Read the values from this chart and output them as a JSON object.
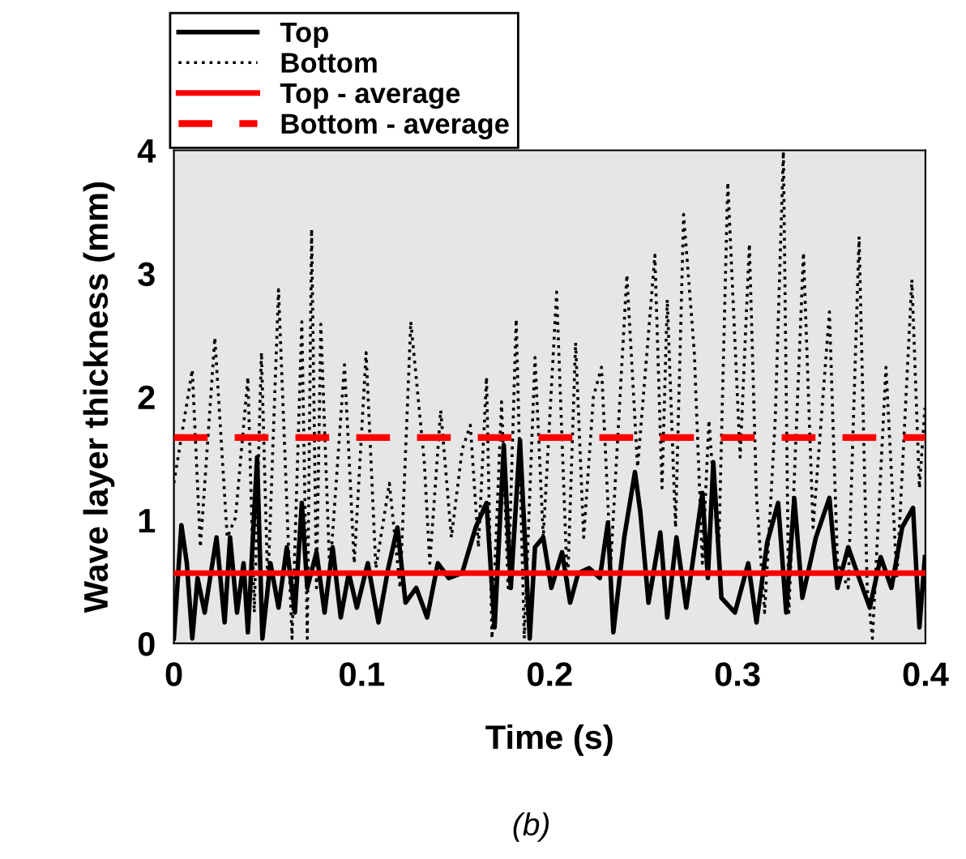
{
  "chart_data": {
    "type": "line",
    "xlabel": "Time (s)",
    "ylabel": "Wave layer thickness (mm)",
    "xlim": [
      0,
      0.4
    ],
    "xticks": [
      0,
      0.1,
      0.2,
      0.3,
      0.4
    ],
    "ylim": [
      0,
      4
    ],
    "yticks": [
      0,
      1,
      2,
      3,
      4
    ],
    "grid": false,
    "legend": "top left",
    "annotations": [
      "(b)"
    ],
    "series": [
      {
        "name": "Top",
        "color": "#000000",
        "line_style": "solid",
        "x": [
          0,
          0.004,
          0.0069,
          0.0098,
          0.0126,
          0.0164,
          0.0227,
          0.027,
          0.0299,
          0.0336,
          0.0371,
          0.0394,
          0.0443,
          0.0471,
          0.0514,
          0.0557,
          0.0601,
          0.0644,
          0.0681,
          0.071,
          0.0759,
          0.0802,
          0.0845,
          0.0888,
          0.0931,
          0.0974,
          0.1032,
          0.1089,
          0.1141,
          0.119,
          0.1233,
          0.129,
          0.1348,
          0.1405,
          0.1463,
          0.1534,
          0.1606,
          0.1664,
          0.1707,
          0.1756,
          0.1793,
          0.1842,
          0.1894,
          0.1922,
          0.1966,
          0.2009,
          0.2066,
          0.2109,
          0.2152,
          0.221,
          0.2267,
          0.231,
          0.2339,
          0.2397,
          0.2454,
          0.2483,
          0.2526,
          0.2589,
          0.2626,
          0.2675,
          0.2727,
          0.2813,
          0.2842,
          0.2871,
          0.2914,
          0.2986,
          0.3057,
          0.3101,
          0.3158,
          0.3216,
          0.3259,
          0.3302,
          0.3345,
          0.3417,
          0.3489,
          0.3532,
          0.3589,
          0.3647,
          0.3704,
          0.3762,
          0.3819,
          0.3876,
          0.3934,
          0.3968,
          0.3997
        ],
        "values": [
          0.04,
          0.96,
          0.65,
          0.04,
          0.53,
          0.25,
          0.86,
          0.17,
          0.86,
          0.25,
          0.65,
          0.09,
          1.51,
          0.04,
          0.65,
          0.29,
          0.78,
          0.25,
          1.14,
          0.45,
          0.74,
          0.25,
          0.78,
          0.21,
          0.57,
          0.29,
          0.65,
          0.17,
          0.61,
          0.94,
          0.33,
          0.45,
          0.21,
          0.65,
          0.53,
          0.57,
          0.94,
          1.14,
          0.13,
          1.61,
          0.45,
          1.65,
          0.04,
          0.78,
          0.86,
          0.45,
          0.74,
          0.33,
          0.57,
          0.61,
          0.53,
          0.98,
          0.09,
          0.86,
          1.39,
          1.06,
          0.33,
          0.9,
          0.21,
          0.86,
          0.29,
          1.22,
          0.53,
          1.47,
          0.37,
          0.25,
          0.65,
          0.17,
          0.82,
          1.14,
          0.25,
          1.18,
          0.37,
          0.86,
          1.18,
          0.45,
          0.78,
          0.53,
          0.29,
          0.7,
          0.45,
          0.94,
          1.1,
          0.13,
          0.7
        ]
      },
      {
        "name": "Bottom",
        "color": "#000000",
        "line_style": "dotted",
        "x": [
          0,
          0.0098,
          0.0141,
          0.0218,
          0.0284,
          0.0328,
          0.0394,
          0.0428,
          0.0466,
          0.05,
          0.0557,
          0.0629,
          0.0681,
          0.071,
          0.0733,
          0.0759,
          0.0782,
          0.083,
          0.0908,
          0.096,
          0.1023,
          0.1075,
          0.1147,
          0.1204,
          0.1261,
          0.1333,
          0.1362,
          0.142,
          0.1477,
          0.1534,
          0.1578,
          0.1621,
          0.1664,
          0.1693,
          0.1744,
          0.1779,
          0.1822,
          0.1865,
          0.1922,
          0.1966,
          0.2037,
          0.2095,
          0.2138,
          0.2181,
          0.2233,
          0.2276,
          0.2325,
          0.2411,
          0.2468,
          0.256,
          0.2598,
          0.2626,
          0.267,
          0.2713,
          0.277,
          0.2813,
          0.2848,
          0.2899,
          0.2948,
          0.3014,
          0.3063,
          0.3101,
          0.3144,
          0.3201,
          0.3244,
          0.3273,
          0.3351,
          0.3402,
          0.3489,
          0.3532,
          0.3589,
          0.3647,
          0.369,
          0.3718,
          0.379,
          0.3848,
          0.3928,
          0.3968,
          0.3997
        ],
        "values": [
          1.3,
          2.22,
          0.78,
          2.48,
          0.86,
          1.02,
          2.16,
          0.25,
          2.36,
          0.45,
          2.87,
          0.04,
          2.61,
          0.04,
          3.36,
          0.45,
          2.59,
          0.57,
          2.26,
          0.65,
          2.36,
          0.61,
          1.3,
          0.45,
          2.61,
          1.47,
          0.65,
          1.89,
          0.86,
          1.57,
          1.77,
          0.78,
          2.16,
          0.04,
          1.96,
          0.45,
          2.63,
          0.04,
          2.32,
          0.86,
          2.85,
          0.45,
          2.44,
          0.86,
          2.0,
          2.24,
          0.65,
          2.99,
          1.43,
          3.15,
          1.26,
          2.79,
          0.94,
          3.48,
          2.36,
          0.65,
          1.81,
          0.7,
          3.74,
          1.51,
          3.24,
          1.18,
          0.25,
          1.83,
          3.99,
          0.25,
          3.17,
          0.94,
          2.69,
          0.65,
          0.45,
          3.3,
          0.45,
          0.04,
          2.24,
          0.53,
          2.95,
          1.26,
          1.91
        ]
      },
      {
        "name": "Top - average",
        "color": "#ff0000",
        "line_style": "solid",
        "x": [
          0,
          0.4
        ],
        "values": [
          0.57,
          0.57
        ]
      },
      {
        "name": "Bottom - average",
        "color": "#ff0000",
        "line_style": "dashed",
        "x": [
          0,
          0.4
        ],
        "values": [
          1.67,
          1.67
        ]
      }
    ]
  }
}
